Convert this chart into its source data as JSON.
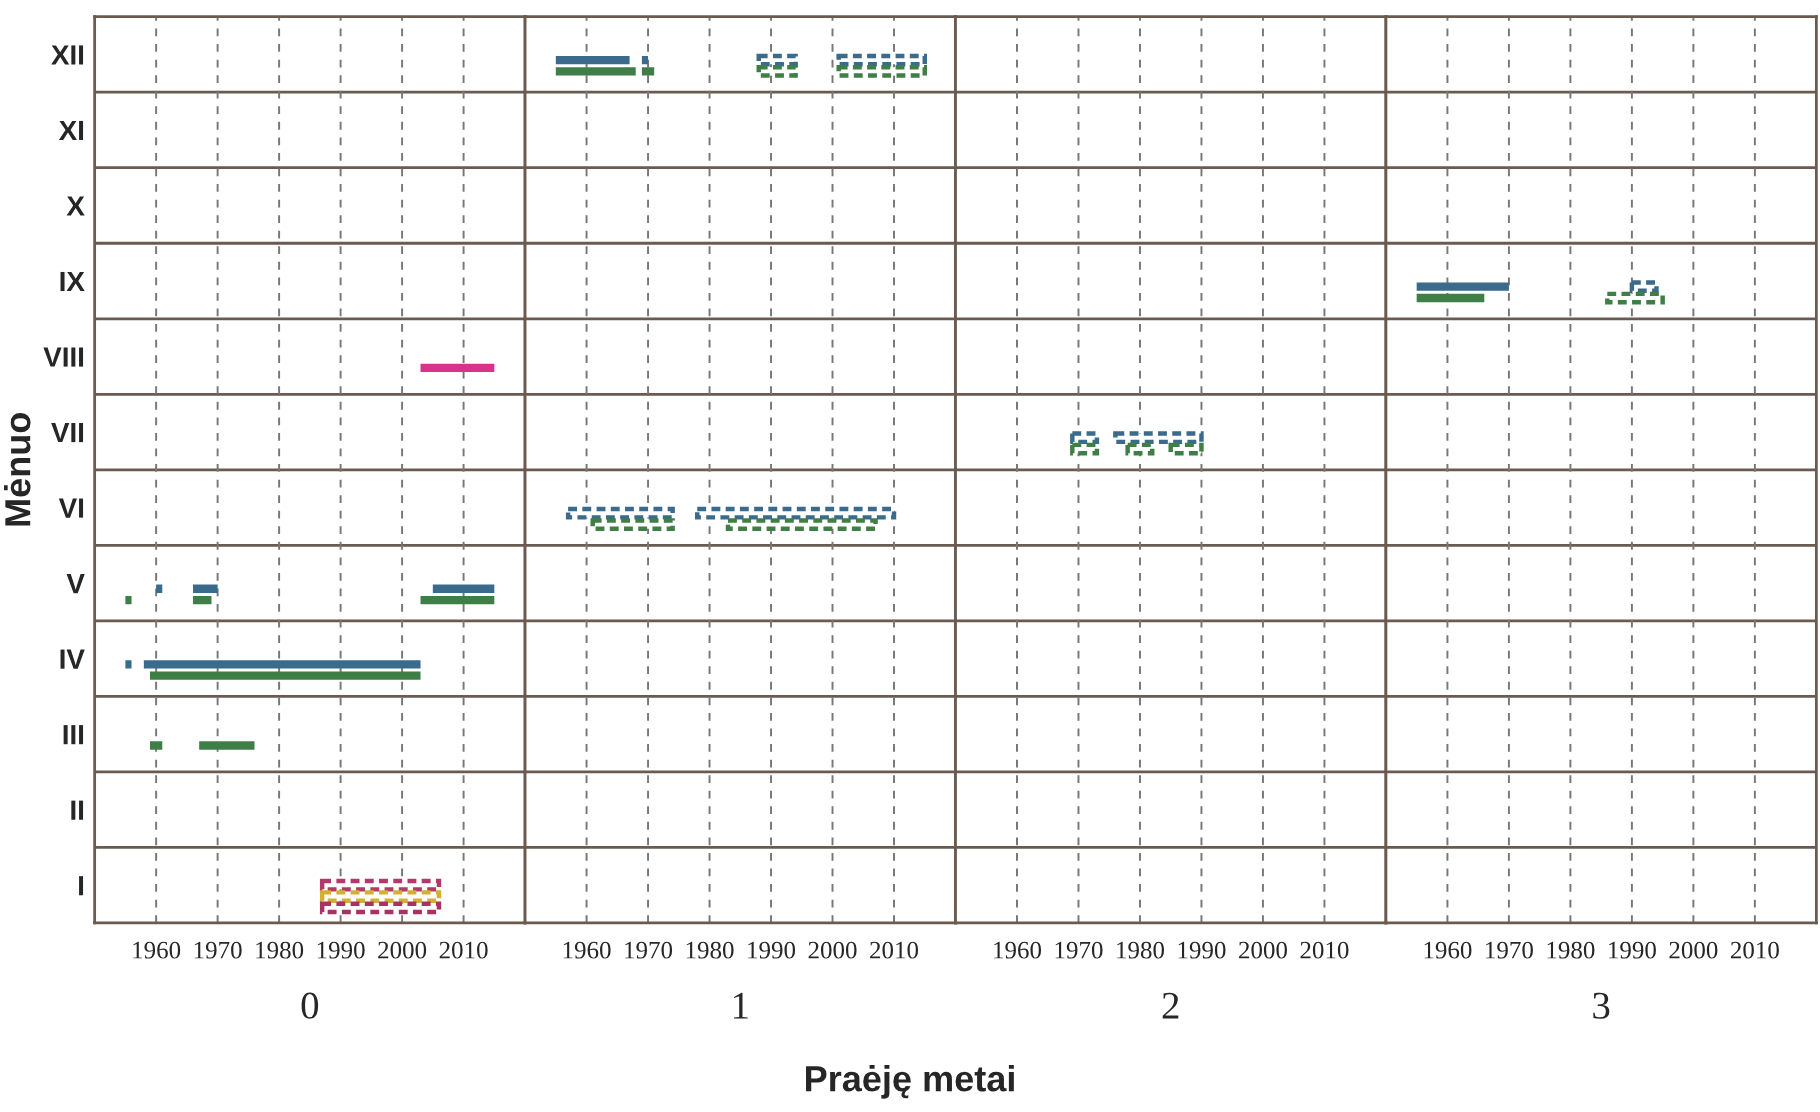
{
  "chart_data": [
    {
      "type": "bar",
      "orientation": "horizontal",
      "xlabel": "0",
      "ylabel": "Mėnuo",
      "categories": [
        "XII",
        "XI",
        "X",
        "IX",
        "VIII",
        "VII",
        "VI",
        "V",
        "IV",
        "III",
        "II",
        "I"
      ],
      "xlim": [
        1950,
        2020
      ],
      "xticks": [
        1960,
        1970,
        1980,
        1990,
        2000,
        2010
      ],
      "grid": "x",
      "series": [
        {
          "color": "#3a6a8c",
          "base": [
            null,
            null,
            null,
            null,
            null,
            null,
            null,
            1960,
            1955,
            null,
            null,
            null
          ],
          "values": [
            null,
            null,
            null,
            null,
            null,
            null,
            null,
            1,
            1,
            null,
            null,
            null
          ]
        },
        {
          "color": "#3a6a8c",
          "base": [
            null,
            null,
            null,
            null,
            null,
            null,
            null,
            1966,
            1958,
            null,
            null,
            null
          ],
          "values": [
            null,
            null,
            null,
            null,
            null,
            null,
            null,
            4,
            45,
            null,
            null,
            null
          ]
        },
        {
          "color": "#3a6a8c",
          "base": [
            null,
            null,
            null,
            null,
            null,
            null,
            null,
            2005,
            null,
            null,
            null,
            null
          ],
          "values": [
            null,
            null,
            null,
            null,
            null,
            null,
            null,
            10,
            null,
            null,
            null,
            null
          ]
        },
        {
          "color": "#3f7f47",
          "base": [
            null,
            null,
            null,
            null,
            null,
            null,
            null,
            1955,
            1959,
            1959,
            null,
            null
          ],
          "values": [
            null,
            null,
            null,
            null,
            null,
            null,
            null,
            1,
            44,
            2,
            null,
            null
          ]
        },
        {
          "color": "#3f7f47",
          "base": [
            null,
            null,
            null,
            null,
            null,
            null,
            null,
            1966,
            null,
            1967,
            null,
            null
          ],
          "values": [
            null,
            null,
            null,
            null,
            null,
            null,
            null,
            3,
            null,
            9,
            null,
            null
          ]
        },
        {
          "color": "#3f7f47",
          "base": [
            null,
            null,
            null,
            null,
            null,
            null,
            null,
            2003,
            null,
            null,
            null,
            null
          ],
          "values": [
            null,
            null,
            null,
            null,
            null,
            null,
            null,
            12,
            null,
            null,
            null,
            null
          ]
        },
        {
          "color": "#d6338a",
          "base": [
            null,
            null,
            null,
            null,
            2003,
            null,
            null,
            null,
            null,
            null,
            null,
            null
          ],
          "values": [
            null,
            null,
            null,
            null,
            12,
            null,
            null,
            null,
            null,
            null,
            null,
            null
          ]
        },
        {
          "color": "#b23a6a",
          "line_style": "dashed",
          "base": [
            null,
            null,
            null,
            null,
            null,
            null,
            null,
            null,
            null,
            null,
            null,
            1987
          ],
          "values": [
            null,
            null,
            null,
            null,
            null,
            null,
            null,
            null,
            null,
            null,
            null,
            19
          ]
        },
        {
          "color": "#d4b030",
          "line_style": "dashed",
          "base": [
            null,
            null,
            null,
            null,
            null,
            null,
            null,
            null,
            null,
            null,
            null,
            1987
          ],
          "values": [
            null,
            null,
            null,
            null,
            null,
            null,
            null,
            null,
            null,
            null,
            null,
            19
          ]
        },
        {
          "color": "#a83262",
          "line_style": "dashed",
          "base": [
            null,
            null,
            null,
            null,
            null,
            null,
            null,
            null,
            null,
            null,
            null,
            1987
          ],
          "values": [
            null,
            null,
            null,
            null,
            null,
            null,
            null,
            null,
            null,
            null,
            null,
            19
          ]
        }
      ]
    },
    {
      "type": "bar",
      "orientation": "horizontal",
      "xlabel": "1",
      "xlim": [
        1950,
        2020
      ],
      "xticks": [
        1960,
        1970,
        1980,
        1990,
        2000,
        2010
      ],
      "grid": "x",
      "tick_labels": "x",
      "annotations": [
        "Praėję metai"
      ],
      "series": [
        {
          "color": "#3a6a8c",
          "base": [
            1955,
            null,
            null,
            null,
            null,
            null,
            null,
            null,
            null,
            null,
            null,
            null
          ],
          "values": [
            12,
            null,
            null,
            null,
            null,
            null,
            null,
            null,
            null,
            null,
            null,
            null
          ]
        },
        {
          "color": "#3a6a8c",
          "base": [
            1969,
            null,
            null,
            null,
            null,
            null,
            null,
            null,
            null,
            null,
            null,
            null
          ],
          "values": [
            1,
            null,
            null,
            null,
            null,
            null,
            null,
            null,
            null,
            null,
            null,
            null
          ]
        },
        {
          "color": "#3f7f47",
          "base": [
            1955,
            null,
            null,
            null,
            null,
            null,
            null,
            null,
            null,
            null,
            null,
            null
          ],
          "values": [
            13,
            null,
            null,
            null,
            null,
            null,
            null,
            null,
            null,
            null,
            null,
            null
          ]
        },
        {
          "color": "#3f7f47",
          "base": [
            1969,
            null,
            null,
            null,
            null,
            null,
            null,
            null,
            null,
            null,
            null,
            null
          ],
          "values": [
            2,
            null,
            null,
            null,
            null,
            null,
            null,
            null,
            null,
            null,
            null,
            null
          ]
        },
        {
          "color": "#3a6a8c",
          "line_style": "dashed",
          "base": [
            1988,
            null,
            null,
            null,
            null,
            null,
            1957,
            null,
            null,
            null,
            null,
            null
          ],
          "values": [
            6,
            null,
            null,
            null,
            null,
            null,
            17,
            null,
            null,
            null,
            null,
            null
          ]
        },
        {
          "color": "#3a6a8c",
          "line_style": "dashed",
          "base": [
            2001,
            null,
            null,
            null,
            null,
            null,
            1978,
            null,
            null,
            null,
            null,
            null
          ],
          "values": [
            14,
            null,
            null,
            null,
            null,
            null,
            32,
            null,
            null,
            null,
            null,
            null
          ]
        },
        {
          "color": "#3f7f47",
          "line_style": "dashed",
          "base": [
            1988,
            null,
            null,
            null,
            null,
            null,
            1961,
            null,
            null,
            null,
            null,
            null
          ],
          "values": [
            6,
            null,
            null,
            null,
            null,
            null,
            13,
            null,
            null,
            null,
            null,
            null
          ]
        },
        {
          "color": "#3f7f47",
          "line_style": "dashed",
          "base": [
            2001,
            null,
            null,
            null,
            null,
            null,
            1983,
            null,
            null,
            null,
            null,
            null
          ],
          "values": [
            14,
            null,
            null,
            null,
            null,
            null,
            24,
            null,
            null,
            null,
            null,
            null
          ]
        }
      ]
    },
    {
      "type": "bar",
      "orientation": "horizontal",
      "xlabel": "2",
      "xlim": [
        1950,
        2020
      ],
      "xticks": [
        1960,
        1970,
        1980,
        1990,
        2000,
        2010
      ],
      "grid": "x",
      "tick_labels": "x",
      "series": [
        {
          "color": "#3a6a8c",
          "line_style": "dashed",
          "base": [
            null,
            null,
            null,
            null,
            null,
            1969,
            null,
            null,
            null,
            null,
            null,
            null
          ],
          "values": [
            null,
            null,
            null,
            null,
            null,
            4,
            null,
            null,
            null,
            null,
            null,
            null
          ]
        },
        {
          "color": "#3a6a8c",
          "line_style": "dashed",
          "base": [
            null,
            null,
            null,
            null,
            null,
            1976,
            null,
            null,
            null,
            null,
            null,
            null
          ],
          "values": [
            null,
            null,
            null,
            null,
            null,
            14,
            null,
            null,
            null,
            null,
            null,
            null
          ]
        },
        {
          "color": "#3f7f47",
          "line_style": "dashed",
          "base": [
            null,
            null,
            null,
            null,
            null,
            1969,
            null,
            null,
            null,
            null,
            null,
            null
          ],
          "values": [
            null,
            null,
            null,
            null,
            null,
            4,
            null,
            null,
            null,
            null,
            null,
            null
          ]
        },
        {
          "color": "#3f7f47",
          "line_style": "dashed",
          "base": [
            null,
            null,
            null,
            null,
            null,
            1978,
            null,
            null,
            null,
            null,
            null,
            null
          ],
          "values": [
            null,
            null,
            null,
            null,
            null,
            4,
            null,
            null,
            null,
            null,
            null,
            null
          ]
        },
        {
          "color": "#3f7f47",
          "line_style": "dashed",
          "base": [
            null,
            null,
            null,
            null,
            null,
            1985,
            null,
            null,
            null,
            null,
            null,
            null
          ],
          "values": [
            null,
            null,
            null,
            null,
            null,
            5,
            null,
            null,
            null,
            null,
            null,
            null
          ]
        }
      ]
    },
    {
      "type": "bar",
      "orientation": "horizontal",
      "xlabel": "3",
      "xlim": [
        1950,
        2020
      ],
      "xticks": [
        1960,
        1970,
        1980,
        1990,
        2000,
        2010
      ],
      "grid": "x",
      "tick_labels": "x",
      "series": [
        {
          "color": "#3a6a8c",
          "base": [
            null,
            null,
            null,
            1955,
            null,
            null,
            null,
            null,
            null,
            null,
            null,
            null
          ],
          "values": [
            null,
            null,
            null,
            15,
            null,
            null,
            null,
            null,
            null,
            null,
            null,
            null
          ]
        },
        {
          "color": "#3f7f47",
          "base": [
            null,
            null,
            null,
            1955,
            null,
            null,
            null,
            null,
            null,
            null,
            null,
            null
          ],
          "values": [
            null,
            null,
            null,
            11,
            null,
            null,
            null,
            null,
            null,
            null,
            null,
            null
          ]
        },
        {
          "color": "#3a6a8c",
          "line_style": "dashed",
          "base": [
            null,
            null,
            null,
            1990,
            null,
            null,
            null,
            null,
            null,
            null,
            null,
            null
          ],
          "values": [
            null,
            null,
            null,
            4,
            null,
            null,
            null,
            null,
            null,
            null,
            null,
            null
          ]
        },
        {
          "color": "#3f7f47",
          "line_style": "dashed",
          "base": [
            null,
            null,
            null,
            1986,
            null,
            null,
            null,
            null,
            null,
            null,
            null,
            null
          ],
          "values": [
            null,
            null,
            null,
            9,
            null,
            null,
            null,
            null,
            null,
            null,
            null,
            null
          ]
        }
      ]
    }
  ]
}
